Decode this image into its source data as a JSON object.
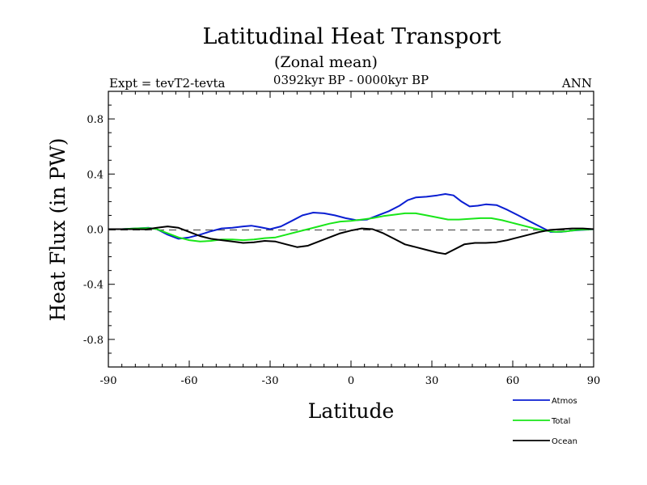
{
  "header": {
    "title": "Latitudinal Heat Transport",
    "subtitle": "(Zonal mean)",
    "experiment": "Expt = tevT2-tevta",
    "period": "0392kyr BP - 0000kyr BP",
    "season": "ANN"
  },
  "chart_data": {
    "type": "line",
    "xlabel": "Latitude",
    "ylabel": "Heat Flux (in PW)",
    "xlim": [
      -90,
      90
    ],
    "ylim": [
      -1.0,
      1.0
    ],
    "xticks": [
      -90,
      -60,
      -30,
      0,
      30,
      60,
      90
    ],
    "xticklabels": [
      "-90",
      "-60",
      "-30",
      "0",
      "30",
      "60",
      "90"
    ],
    "yticks": [
      -0.8,
      -0.4,
      0.0,
      0.4,
      0.8
    ],
    "yticklabels": [
      "-0.8",
      "-0.4",
      "0.0",
      "0.4",
      "0.8"
    ],
    "zero_line": "dashed",
    "legend_position": "below-right",
    "series": [
      {
        "name": "Atmos",
        "color": "#0a1ed2",
        "points": [
          [
            -90,
            0.0
          ],
          [
            -85,
            0.0
          ],
          [
            -80,
            0.005
          ],
          [
            -75,
            0.01
          ],
          [
            -72,
            0.0
          ],
          [
            -68,
            -0.04
          ],
          [
            -64,
            -0.07
          ],
          [
            -60,
            -0.06
          ],
          [
            -56,
            -0.04
          ],
          [
            -52,
            -0.015
          ],
          [
            -48,
            0.005
          ],
          [
            -44,
            0.01
          ],
          [
            -40,
            0.02
          ],
          [
            -37,
            0.025
          ],
          [
            -34,
            0.015
          ],
          [
            -30,
            0.0
          ],
          [
            -26,
            0.02
          ],
          [
            -22,
            0.06
          ],
          [
            -18,
            0.1
          ],
          [
            -14,
            0.12
          ],
          [
            -10,
            0.115
          ],
          [
            -6,
            0.1
          ],
          [
            -2,
            0.08
          ],
          [
            2,
            0.065
          ],
          [
            6,
            0.07
          ],
          [
            10,
            0.1
          ],
          [
            14,
            0.13
          ],
          [
            18,
            0.17
          ],
          [
            21,
            0.21
          ],
          [
            24,
            0.23
          ],
          [
            28,
            0.235
          ],
          [
            32,
            0.245
          ],
          [
            35,
            0.255
          ],
          [
            38,
            0.245
          ],
          [
            41,
            0.2
          ],
          [
            44,
            0.165
          ],
          [
            47,
            0.17
          ],
          [
            50,
            0.18
          ],
          [
            54,
            0.175
          ],
          [
            58,
            0.14
          ],
          [
            62,
            0.1
          ],
          [
            66,
            0.06
          ],
          [
            70,
            0.02
          ],
          [
            74,
            -0.02
          ],
          [
            78,
            -0.02
          ],
          [
            82,
            -0.01
          ],
          [
            86,
            -0.005
          ],
          [
            90,
            0.0
          ]
        ]
      },
      {
        "name": "Total",
        "color": "#19e619",
        "points": [
          [
            -90,
            0.0
          ],
          [
            -85,
            0.0
          ],
          [
            -80,
            0.005
          ],
          [
            -75,
            0.008
          ],
          [
            -72,
            0.0
          ],
          [
            -68,
            -0.03
          ],
          [
            -64,
            -0.06
          ],
          [
            -60,
            -0.08
          ],
          [
            -56,
            -0.09
          ],
          [
            -52,
            -0.085
          ],
          [
            -48,
            -0.075
          ],
          [
            -44,
            -0.075
          ],
          [
            -40,
            -0.08
          ],
          [
            -36,
            -0.075
          ],
          [
            -32,
            -0.065
          ],
          [
            -28,
            -0.06
          ],
          [
            -24,
            -0.04
          ],
          [
            -20,
            -0.02
          ],
          [
            -16,
            0.0
          ],
          [
            -12,
            0.02
          ],
          [
            -8,
            0.04
          ],
          [
            -4,
            0.055
          ],
          [
            0,
            0.06
          ],
          [
            4,
            0.07
          ],
          [
            8,
            0.08
          ],
          [
            12,
            0.095
          ],
          [
            16,
            0.105
          ],
          [
            20,
            0.115
          ],
          [
            24,
            0.115
          ],
          [
            28,
            0.1
          ],
          [
            32,
            0.085
          ],
          [
            36,
            0.07
          ],
          [
            40,
            0.07
          ],
          [
            44,
            0.075
          ],
          [
            48,
            0.08
          ],
          [
            52,
            0.08
          ],
          [
            56,
            0.065
          ],
          [
            60,
            0.045
          ],
          [
            64,
            0.025
          ],
          [
            68,
            0.005
          ],
          [
            72,
            -0.01
          ],
          [
            76,
            -0.02
          ],
          [
            80,
            -0.015
          ],
          [
            84,
            -0.005
          ],
          [
            90,
            0.0
          ]
        ]
      },
      {
        "name": "Ocean",
        "color": "#000000",
        "points": [
          [
            -90,
            0.0
          ],
          [
            -85,
            0.0
          ],
          [
            -80,
            0.0
          ],
          [
            -76,
            -0.002
          ],
          [
            -72,
            0.01
          ],
          [
            -68,
            0.02
          ],
          [
            -64,
            0.01
          ],
          [
            -60,
            -0.02
          ],
          [
            -56,
            -0.05
          ],
          [
            -52,
            -0.07
          ],
          [
            -48,
            -0.08
          ],
          [
            -44,
            -0.09
          ],
          [
            -40,
            -0.1
          ],
          [
            -36,
            -0.095
          ],
          [
            -32,
            -0.085
          ],
          [
            -28,
            -0.09
          ],
          [
            -24,
            -0.11
          ],
          [
            -20,
            -0.13
          ],
          [
            -16,
            -0.12
          ],
          [
            -12,
            -0.09
          ],
          [
            -8,
            -0.06
          ],
          [
            -4,
            -0.03
          ],
          [
            0,
            -0.01
          ],
          [
            4,
            0.005
          ],
          [
            8,
            0.0
          ],
          [
            12,
            -0.03
          ],
          [
            16,
            -0.07
          ],
          [
            20,
            -0.11
          ],
          [
            24,
            -0.13
          ],
          [
            28,
            -0.15
          ],
          [
            32,
            -0.17
          ],
          [
            35,
            -0.18
          ],
          [
            38,
            -0.15
          ],
          [
            42,
            -0.11
          ],
          [
            46,
            -0.1
          ],
          [
            50,
            -0.1
          ],
          [
            54,
            -0.095
          ],
          [
            58,
            -0.08
          ],
          [
            62,
            -0.06
          ],
          [
            66,
            -0.04
          ],
          [
            70,
            -0.02
          ],
          [
            74,
            -0.005
          ],
          [
            78,
            0.0
          ],
          [
            82,
            0.005
          ],
          [
            86,
            0.005
          ],
          [
            90,
            0.0
          ]
        ]
      }
    ]
  }
}
